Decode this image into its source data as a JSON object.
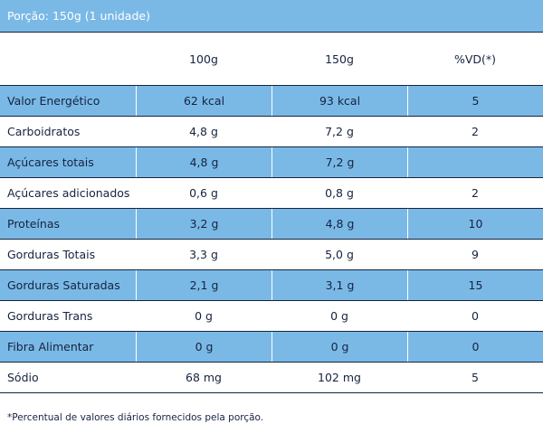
{
  "portion": "Porção: 150g (1 unidade)",
  "headers": {
    "name": "",
    "col100": "100g",
    "col150": "150g",
    "vd": "%VD(*)"
  },
  "rows": [
    {
      "name": "Valor Energético",
      "v100": "62 kcal",
      "v150": "93 kcal",
      "vd": "5"
    },
    {
      "name": "Carboidratos",
      "v100": "4,8 g",
      "v150": "7,2 g",
      "vd": "2"
    },
    {
      "name": "Açúcares totais",
      "v100": "4,8 g",
      "v150": "7,2 g",
      "vd": ""
    },
    {
      "name": "Açúcares adicionados",
      "v100": "0,6 g",
      "v150": "0,8 g",
      "vd": "2"
    },
    {
      "name": "Proteínas",
      "v100": "3,2 g",
      "v150": "4,8 g",
      "vd": "10"
    },
    {
      "name": "Gorduras Totais",
      "v100": "3,3 g",
      "v150": "5,0 g",
      "vd": "9"
    },
    {
      "name": "Gorduras Saturadas",
      "v100": "2,1 g",
      "v150": "3,1 g",
      "vd": "15"
    },
    {
      "name": "Gorduras Trans",
      "v100": "0 g",
      "v150": "0 g",
      "vd": "0"
    },
    {
      "name": "Fibra Alimentar",
      "v100": "0 g",
      "v150": "0 g",
      "vd": "0"
    },
    {
      "name": "Sódio",
      "v100": "68 mg",
      "v150": "102 mg",
      "vd": "5"
    }
  ],
  "footnote": "*Percentual de valores diários fornecidos pela porção.",
  "colors": {
    "accent": "#7ab9e6",
    "text": "#16233f"
  }
}
